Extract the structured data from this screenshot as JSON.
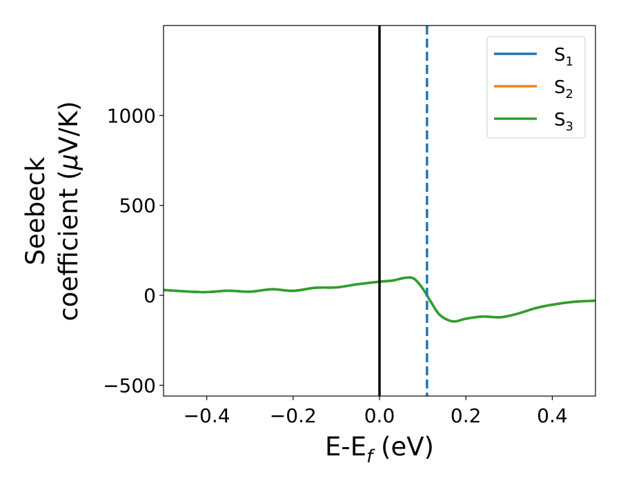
{
  "chart_data": {
    "type": "line",
    "xlabel": {
      "main": "E-E",
      "sub": "f",
      "unit": " (eV)"
    },
    "ylabel": {
      "line1": "Seebeck",
      "line2": "coefficient  (",
      "mu": "μ",
      "line2_end": "V/K)"
    },
    "xlim": [
      -0.5,
      0.5
    ],
    "ylim": [
      -560,
      1500
    ],
    "xticks": [
      {
        "value": -0.4,
        "label": "−0.4"
      },
      {
        "value": -0.2,
        "label": "−0.2"
      },
      {
        "value": 0.0,
        "label": "0.0"
      },
      {
        "value": 0.2,
        "label": "0.2"
      },
      {
        "value": 0.4,
        "label": "0.4"
      }
    ],
    "yticks": [
      {
        "value": -500,
        "label": "−500"
      },
      {
        "value": 0,
        "label": "0"
      },
      {
        "value": 500,
        "label": "500"
      },
      {
        "value": 1000,
        "label": "1000"
      }
    ],
    "grid": false,
    "legend_position": "top-right",
    "vlines": [
      {
        "x": 0.0,
        "color": "#000000",
        "style": "solid"
      },
      {
        "x": 0.11,
        "color": "#1f77b4",
        "style": "dashed"
      }
    ],
    "series": [
      {
        "name": "S",
        "sub": "1",
        "color": "#1f77b4",
        "x": [
          -0.5,
          -0.45,
          -0.4,
          -0.35,
          -0.3,
          -0.25,
          -0.2,
          -0.15,
          -0.1,
          -0.05,
          0.0,
          0.03,
          0.06,
          0.08,
          0.1,
          0.12,
          0.14,
          0.17,
          0.2,
          0.24,
          0.28,
          0.32,
          0.36,
          0.4,
          0.45,
          0.5
        ],
        "y": [
          30,
          22,
          18,
          26,
          20,
          34,
          25,
          42,
          44,
          62,
          76,
          82,
          98,
          92,
          38,
          -40,
          -110,
          -145,
          -130,
          -118,
          -122,
          -102,
          -72,
          -52,
          -36,
          -30
        ]
      },
      {
        "name": "S",
        "sub": "2",
        "color": "#ff7f0e",
        "x": [
          -0.5,
          -0.45,
          -0.4,
          -0.35,
          -0.3,
          -0.25,
          -0.2,
          -0.15,
          -0.1,
          -0.05,
          0.0,
          0.03,
          0.06,
          0.08,
          0.1,
          0.12,
          0.14,
          0.17,
          0.2,
          0.24,
          0.28,
          0.32,
          0.36,
          0.4,
          0.45,
          0.5
        ],
        "y": [
          30,
          22,
          18,
          26,
          20,
          34,
          25,
          42,
          44,
          62,
          76,
          82,
          98,
          92,
          38,
          -40,
          -110,
          -145,
          -130,
          -118,
          -122,
          -102,
          -72,
          -52,
          -36,
          -30
        ]
      },
      {
        "name": "S",
        "sub": "3",
        "color": "#2ca02c",
        "x": [
          -0.5,
          -0.45,
          -0.4,
          -0.35,
          -0.3,
          -0.25,
          -0.2,
          -0.15,
          -0.1,
          -0.05,
          0.0,
          0.03,
          0.06,
          0.08,
          0.1,
          0.12,
          0.14,
          0.17,
          0.2,
          0.24,
          0.28,
          0.32,
          0.36,
          0.4,
          0.45,
          0.5
        ],
        "y": [
          30,
          22,
          18,
          26,
          20,
          34,
          25,
          42,
          44,
          62,
          76,
          82,
          98,
          92,
          38,
          -40,
          -110,
          -145,
          -130,
          -118,
          -122,
          -102,
          -72,
          -52,
          -36,
          -30
        ]
      }
    ]
  }
}
